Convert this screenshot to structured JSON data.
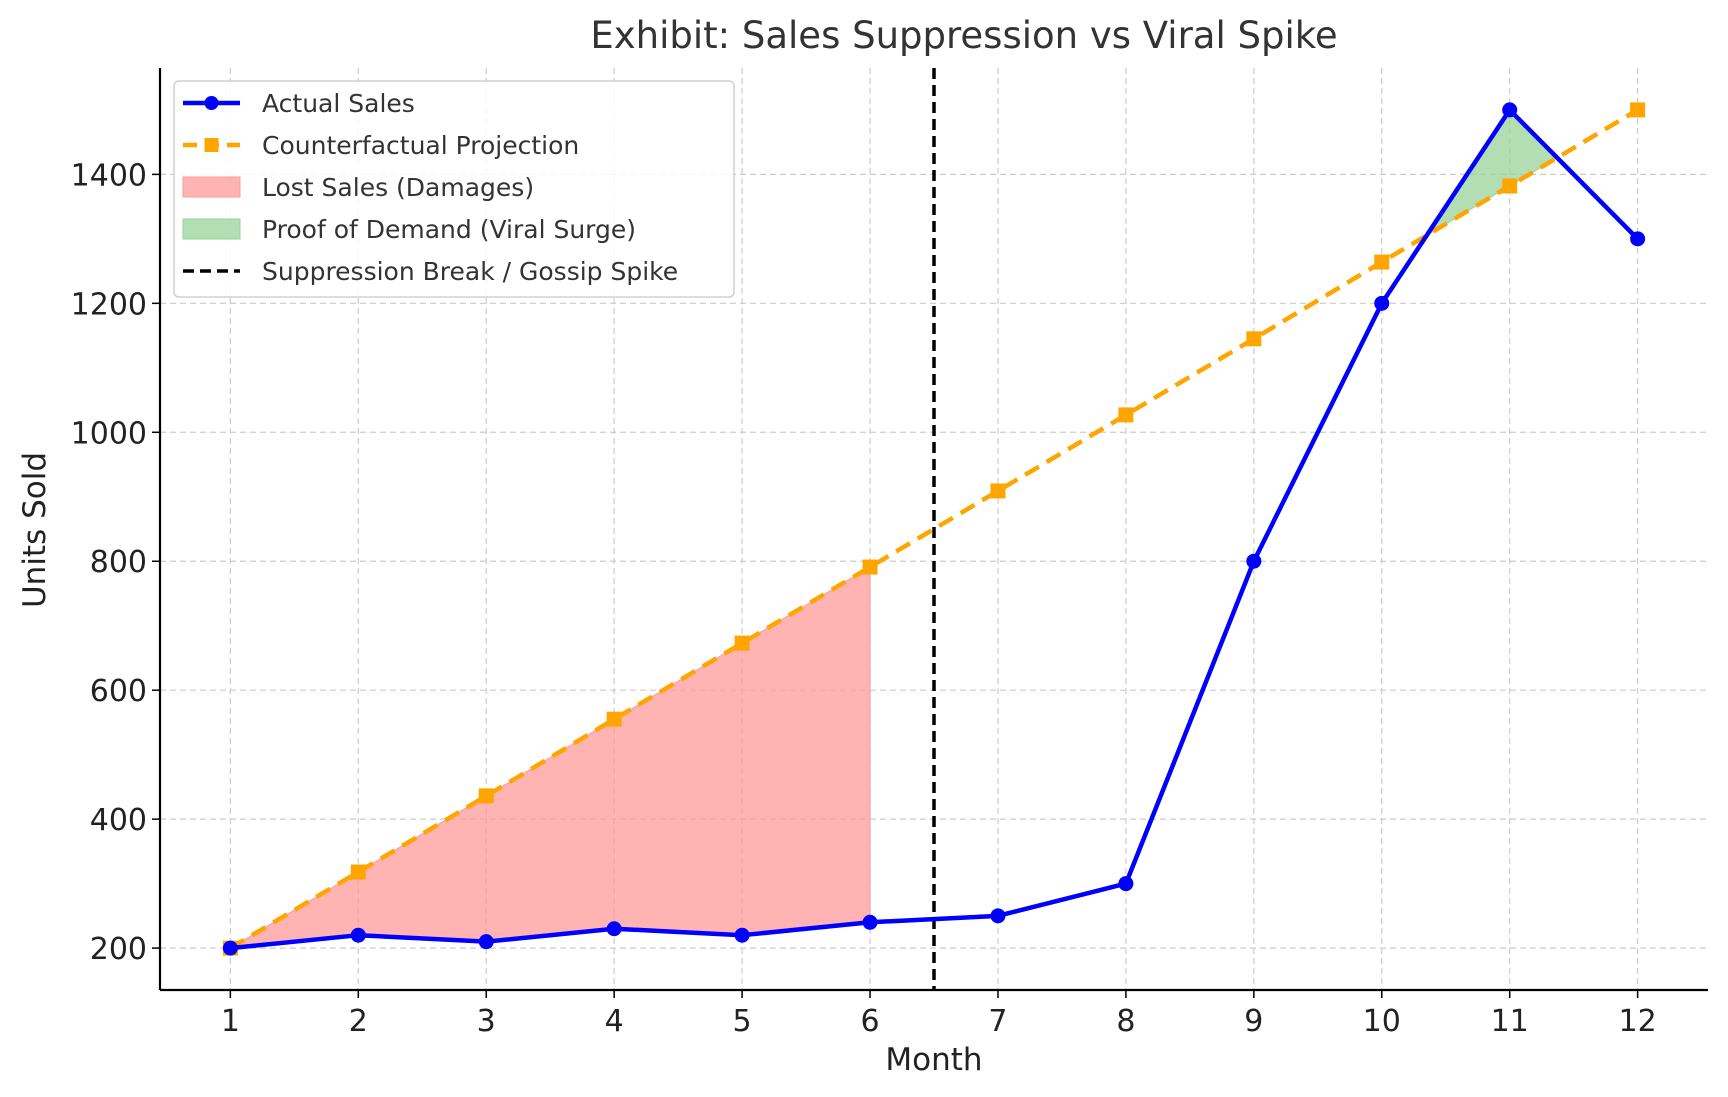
{
  "chart_data": {
    "type": "line",
    "title": "Exhibit: Sales Suppression vs Viral Spike",
    "xlabel": "Month",
    "ylabel": "Units Sold",
    "xlim": [
      0.45,
      12.55
    ],
    "ylim": [
      135,
      1565
    ],
    "x_ticks": [
      1,
      2,
      3,
      4,
      5,
      6,
      7,
      8,
      9,
      10,
      11,
      12
    ],
    "y_ticks": [
      200,
      400,
      600,
      800,
      1000,
      1200,
      1400
    ],
    "x_tick_labels": [
      "1",
      "2",
      "3",
      "4",
      "5",
      "6",
      "7",
      "8",
      "9",
      "10",
      "11",
      "12"
    ],
    "y_tick_labels": [
      "200",
      "400",
      "600",
      "800",
      "1000",
      "1200",
      "1400"
    ],
    "grid": true,
    "legend_position": "top-left",
    "x": [
      1,
      2,
      3,
      4,
      5,
      6,
      7,
      8,
      9,
      10,
      11,
      12
    ],
    "series": [
      {
        "name": "Actual Sales",
        "color": "#0000ff",
        "line_style": "solid",
        "marker": "circle",
        "values": [
          200,
          220,
          210,
          230,
          220,
          240,
          250,
          300,
          800,
          1200,
          1500,
          1300
        ]
      },
      {
        "name": "Counterfactual Projection",
        "color": "#ffa500",
        "line_style": "dashed",
        "marker": "square",
        "values": [
          200,
          318,
          436,
          555,
          673,
          791,
          909,
          1027,
          1145,
          1264,
          1382,
          1500
        ]
      }
    ],
    "fills": [
      {
        "name": "Lost Sales (Damages)",
        "color": "#ff9999",
        "between": [
          "Counterfactual Projection",
          "Actual Sales"
        ],
        "x_range": [
          1,
          6
        ]
      },
      {
        "name": "Proof of Demand (Viral Surge)",
        "color": "#99d199",
        "between": [
          "Actual Sales",
          "Counterfactual Projection"
        ],
        "where": "actual above projection"
      }
    ],
    "vlines": [
      {
        "name": "Suppression Break / Gossip Spike",
        "x": 6.5,
        "color": "#000000",
        "line_style": "dashed"
      }
    ],
    "legend": [
      "Actual Sales",
      "Counterfactual Projection",
      "Lost Sales (Damages)",
      "Proof of Demand (Viral Surge)",
      "Suppression Break / Gossip Spike"
    ]
  }
}
